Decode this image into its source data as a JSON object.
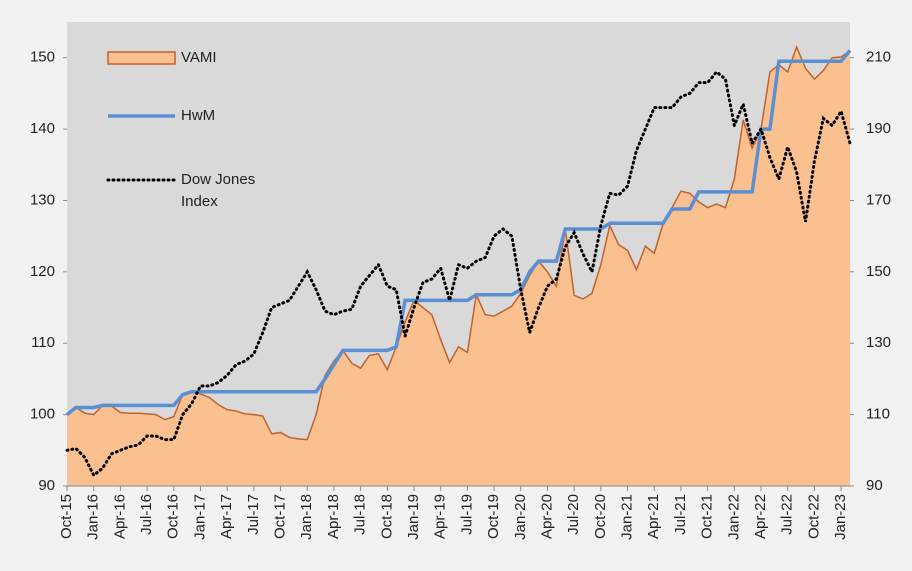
{
  "chart_data": {
    "type": "line",
    "categories": [
      "Oct-15",
      null,
      null,
      "Jan-16",
      null,
      null,
      "Apr-16",
      null,
      null,
      "Jul-16",
      null,
      null,
      "Oct-16",
      null,
      null,
      "Jan-17",
      null,
      null,
      "Apr-17",
      null,
      null,
      "Jul-17",
      null,
      null,
      "Oct-17",
      null,
      null,
      "Jan-18",
      null,
      null,
      "Apr-18",
      null,
      null,
      "Jul-18",
      null,
      null,
      "Oct-18",
      null,
      null,
      "Jan-19",
      null,
      null,
      "Apr-19",
      null,
      null,
      "Jul-19",
      null,
      null,
      "Oct-19",
      null,
      null,
      "Jan-20",
      null,
      null,
      "Apr-20",
      null,
      null,
      "Jul-20",
      null,
      null,
      "Oct-20",
      null,
      null,
      "Jan-21",
      null,
      null,
      "Apr-21",
      null,
      null,
      "Jul-21",
      null,
      null,
      "Oct-21",
      null,
      null,
      "Jan-22",
      null,
      null,
      "Apr-22",
      null,
      null,
      "Jul-22",
      null,
      null,
      "Oct-22",
      null,
      null,
      "Jan-23",
      null
    ],
    "series": [
      {
        "name": "VAMI",
        "style": "area",
        "color": "#fac090",
        "line_color": "#c0622d",
        "values": [
          100,
          101,
          100.2,
          100,
          101.3,
          101.2,
          100.3,
          100.2,
          100.2,
          100.1,
          100,
          99.3,
          99.7,
          102.8,
          103.2,
          102.9,
          102.4,
          101.4,
          100.7,
          100.5,
          100.1,
          100,
          99.8,
          97.3,
          97.5,
          96.8,
          96.6,
          96.5,
          100,
          105.5,
          107.5,
          109,
          107.2,
          106.5,
          108.3,
          108.5,
          106.3,
          109.5,
          113,
          116,
          115,
          114,
          110.5,
          107.3,
          109.5,
          108.7,
          116.8,
          114,
          113.8,
          114.5,
          115.2,
          117,
          119.5,
          121.5,
          120,
          118,
          126,
          116.7,
          116.2,
          117,
          121,
          126.5,
          123.8,
          123,
          120.3,
          123.6,
          122.6,
          126.8,
          129,
          131.3,
          131,
          129.8,
          129,
          129.5,
          129,
          133,
          141.3,
          137.3,
          140,
          148,
          149,
          148,
          151.5,
          148.5,
          147,
          148.2,
          150,
          150.1,
          151
        ]
      },
      {
        "name": "HwM",
        "style": "line",
        "color": "#5b8fd4",
        "values": [
          100,
          101,
          101,
          101,
          101.3,
          101.3,
          101.3,
          101.3,
          101.3,
          101.3,
          101.3,
          101.3,
          101.3,
          102.8,
          103.2,
          103.2,
          103.2,
          103.2,
          103.2,
          103.2,
          103.2,
          103.2,
          103.2,
          103.2,
          103.2,
          103.2,
          103.2,
          103.2,
          103.2,
          105,
          107,
          109,
          109,
          109,
          109,
          109,
          109,
          109.5,
          116,
          116,
          116,
          116,
          116,
          116,
          116,
          116,
          116.8,
          116.8,
          116.8,
          116.8,
          116.8,
          117.5,
          120,
          121.5,
          121.5,
          121.5,
          126,
          126,
          126,
          126,
          126,
          126.8,
          126.8,
          126.8,
          126.8,
          126.8,
          126.8,
          126.8,
          128.8,
          128.8,
          128.8,
          131.2,
          131.2,
          131.2,
          131.2,
          131.2,
          131.2,
          131.2,
          140,
          140,
          149.5,
          149.5,
          149.5,
          149.5,
          149.5,
          149.5,
          149.5,
          149.5,
          151
        ]
      },
      {
        "name": "Dow Jones Index",
        "style": "dotted",
        "color": "#000000",
        "axis": "y2",
        "values": [
          100,
          100.5,
          98,
          93,
          95,
          99,
          100,
          101,
          101.5,
          104,
          104,
          103,
          103,
          110,
          113,
          118,
          118,
          119,
          121,
          124,
          125,
          127,
          133,
          140,
          141,
          142,
          146,
          150,
          145,
          139,
          138,
          139,
          139.5,
          146,
          149,
          152,
          146,
          145,
          132,
          140,
          147,
          148,
          151,
          142,
          152,
          151,
          153,
          154,
          160,
          162,
          160,
          145,
          133,
          140,
          146,
          148,
          157,
          161,
          155,
          150,
          163,
          172,
          171.5,
          174,
          184,
          190,
          196,
          196,
          196,
          199,
          200,
          203,
          203,
          206,
          204,
          191,
          197,
          186,
          190,
          182,
          176,
          185,
          178,
          164,
          181,
          193,
          191,
          195,
          186
        ]
      }
    ],
    "ylim": [
      90,
      155
    ],
    "yticks": [
      90,
      100,
      110,
      120,
      130,
      140,
      150
    ],
    "y2lim": [
      90,
      220
    ],
    "y2ticks": [
      90,
      110,
      130,
      150,
      170,
      190,
      210
    ],
    "grid": false,
    "legend": "upper left"
  }
}
